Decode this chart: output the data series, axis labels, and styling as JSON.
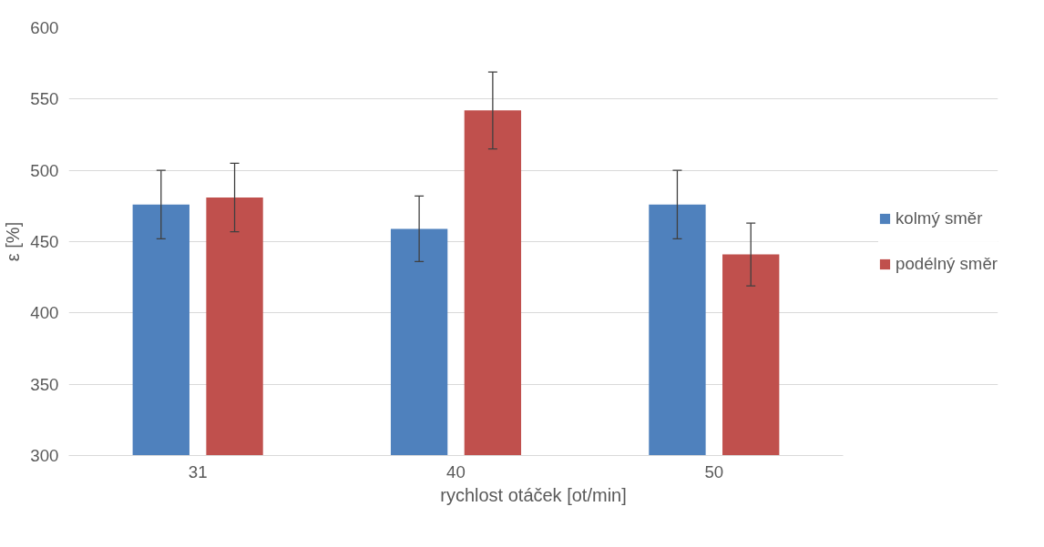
{
  "chart_data": {
    "type": "bar",
    "xlabel": "rychlost otáček [ot/min]",
    "ylabel": "ε [%]",
    "categories": [
      "31",
      "40",
      "50"
    ],
    "series": [
      {
        "name": "kolmý směr",
        "color": "#4f81bd",
        "values": [
          476,
          459,
          476
        ],
        "errors": [
          24,
          23,
          24
        ]
      },
      {
        "name": "podélný směr",
        "color": "#c0504d",
        "values": [
          481,
          542,
          441
        ],
        "errors": [
          24,
          27,
          22
        ]
      }
    ],
    "ylim": [
      300,
      600
    ],
    "yticks": [
      300,
      350,
      400,
      450,
      500,
      550,
      600
    ],
    "grid": "y",
    "legend": "right"
  }
}
